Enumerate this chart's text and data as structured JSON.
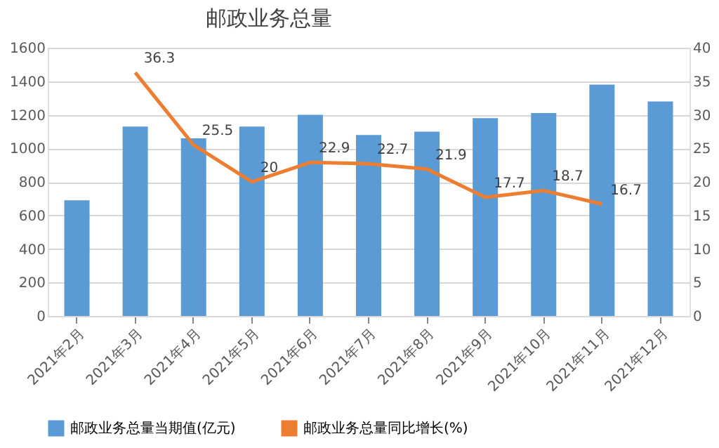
{
  "chart_data": {
    "type": "bar",
    "title": "邮政业务总量",
    "categories": [
      "2021年2月",
      "2021年3月",
      "2021年4月",
      "2021年5月",
      "2021年6月",
      "2021年7月",
      "2021年8月",
      "2021年9月",
      "2021年10月",
      "2021年11月",
      "2021年12月"
    ],
    "series": [
      {
        "name": "邮政业务总量当期值(亿元)",
        "color": "#5b9bd5",
        "values": [
          690,
          1130,
          1060,
          1130,
          1200,
          1080,
          1100,
          1180,
          1210,
          1380,
          1280
        ]
      },
      {
        "name": "邮政业务总量同比增长(%)",
        "color": "#ed7d31",
        "type": "line",
        "axis": "y2",
        "values": [
          null,
          36.3,
          25.5,
          20,
          22.9,
          22.7,
          21.9,
          17.7,
          18.7,
          16.7,
          null
        ],
        "value_labels": [
          null,
          "36.3",
          "25.5",
          "20",
          "22.9",
          "22.7",
          "21.9",
          "17.7",
          "18.7",
          "16.7",
          null
        ]
      }
    ],
    "ylim": [
      0,
      1600
    ],
    "yticks": [
      0,
      200,
      400,
      600,
      800,
      1000,
      1200,
      1400,
      1600
    ],
    "y2lim": [
      0,
      40
    ],
    "y2ticks": [
      0,
      5,
      10,
      15,
      20,
      25,
      30,
      35,
      40
    ],
    "grid": "y",
    "legend": "bottom",
    "marker": "none",
    "line_style": "solid"
  }
}
